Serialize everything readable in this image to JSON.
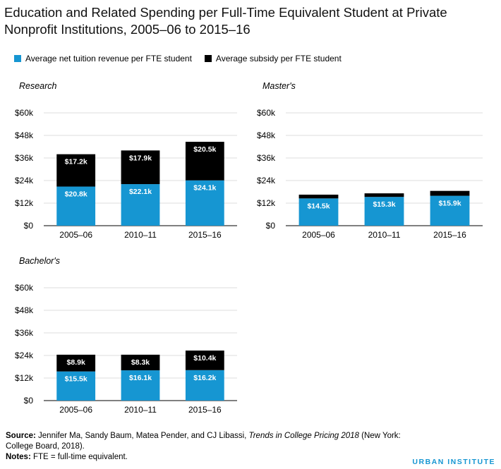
{
  "title": "Education and Related Spending per Full-Time Equivalent Student at Private Nonprofit Institutions, 2005–06 to 2015–16",
  "legend": {
    "items": [
      {
        "label": "Average net tuition revenue per FTE student",
        "color": "#1696d2"
      },
      {
        "label": "Average subsidy per FTE student",
        "color": "#000000"
      }
    ]
  },
  "colors": {
    "tuition": "#1696d2",
    "subsidy": "#000000",
    "brand_accent": "#1696d2"
  },
  "chart_data": [
    {
      "type": "bar",
      "stacked": true,
      "title": "Research",
      "categories": [
        "2005–06",
        "2010–11",
        "2015–16"
      ],
      "series": [
        {
          "name": "Average net tuition revenue per FTE student",
          "values": [
            20.8,
            22.1,
            24.1
          ],
          "labels": [
            "$20.8k",
            "$22.1k",
            "$24.1k"
          ]
        },
        {
          "name": "Average subsidy per FTE student",
          "values": [
            17.2,
            17.9,
            20.5
          ],
          "labels": [
            "$17.2k",
            "$17.9k",
            "$20.5k"
          ]
        }
      ],
      "ylim": [
        0,
        60
      ],
      "yticks": [
        "$0",
        "$12k",
        "$24k",
        "$36k",
        "$48k",
        "$60k"
      ],
      "grid": true
    },
    {
      "type": "bar",
      "stacked": true,
      "title": "Master's",
      "categories": [
        "2005–06",
        "2010–11",
        "2015–16"
      ],
      "series": [
        {
          "name": "Average net tuition revenue per FTE student",
          "values": [
            14.5,
            15.3,
            15.9
          ],
          "labels": [
            "$14.5k",
            "$15.3k",
            "$15.9k"
          ]
        },
        {
          "name": "Average subsidy per FTE student",
          "values": [
            2.0,
            1.9,
            2.6
          ],
          "labels": [
            "",
            "",
            ""
          ]
        }
      ],
      "ylim": [
        0,
        60
      ],
      "yticks": [
        "$0",
        "$12k",
        "$24k",
        "$36k",
        "$48k",
        "$60k"
      ],
      "grid": true
    },
    {
      "type": "bar",
      "stacked": true,
      "title": "Bachelor's",
      "categories": [
        "2005–06",
        "2010–11",
        "2015–16"
      ],
      "series": [
        {
          "name": "Average net tuition revenue per FTE student",
          "values": [
            15.5,
            16.1,
            16.2
          ],
          "labels": [
            "$15.5k",
            "$16.1k",
            "$16.2k"
          ]
        },
        {
          "name": "Average subsidy per FTE student",
          "values": [
            8.9,
            8.3,
            10.4
          ],
          "labels": [
            "$8.9k",
            "$8.3k",
            "$10.4k"
          ]
        }
      ],
      "ylim": [
        0,
        60
      ],
      "yticks": [
        "$0",
        "$12k",
        "$24k",
        "$36k",
        "$48k",
        "$60k"
      ],
      "grid": true
    }
  ],
  "footer": {
    "source_label": "Source:",
    "source_text_1": " Jennifer Ma, Sandy Baum, Matea Pender, and CJ Libassi, ",
    "source_italic": "Trends in College Pricing 2018",
    "source_text_2": " (New York: College Board, 2018).",
    "notes_label": "Notes:",
    "notes_text": " FTE = full-time equivalent."
  },
  "brand": "URBAN INSTITUTE"
}
